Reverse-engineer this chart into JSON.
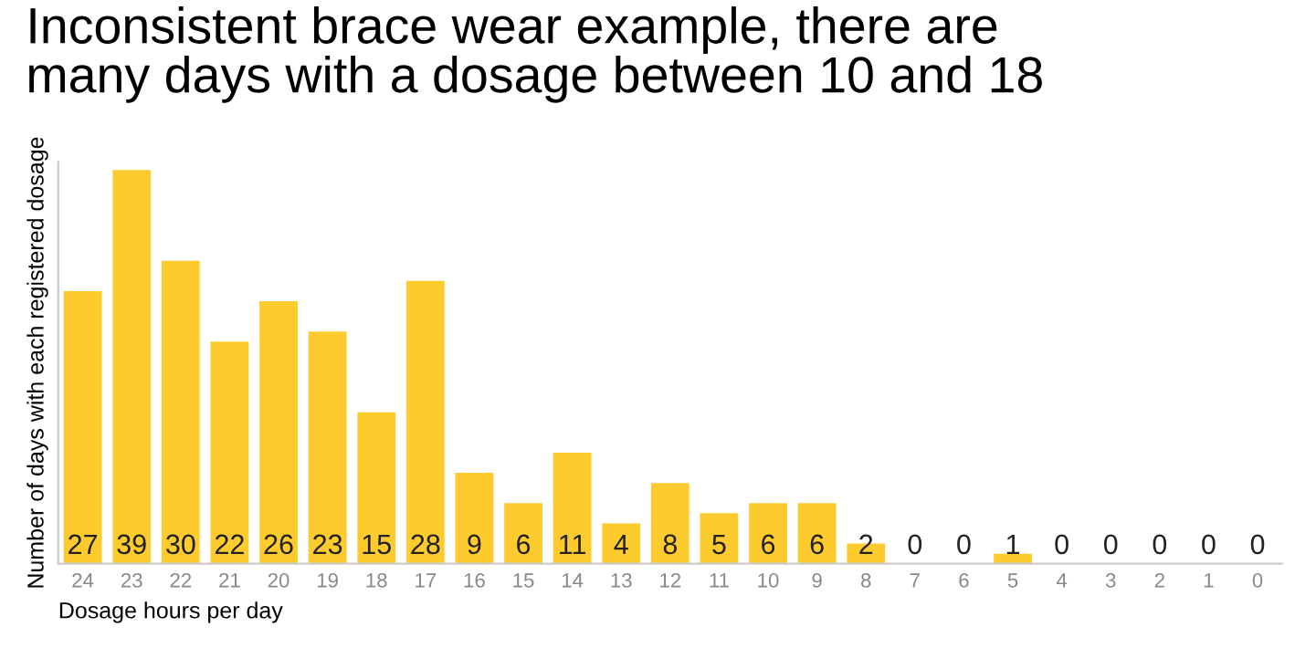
{
  "chart_data": {
    "type": "bar",
    "title": "Inconsistent brace wear example, there are\nmany days with a dosage between 10 and 18",
    "xlabel": "Dosage hours per day",
    "ylabel": "Number of days with each registered dosage",
    "categories": [
      "24",
      "23",
      "22",
      "21",
      "20",
      "19",
      "18",
      "17",
      "16",
      "15",
      "14",
      "13",
      "12",
      "11",
      "10",
      "9",
      "8",
      "7",
      "6",
      "5",
      "4",
      "3",
      "2",
      "1",
      "0"
    ],
    "values": [
      27,
      39,
      30,
      22,
      26,
      23,
      15,
      28,
      9,
      6,
      11,
      4,
      8,
      5,
      6,
      6,
      2,
      0,
      0,
      1,
      0,
      0,
      0,
      0,
      0
    ],
    "color": "#fecb2f",
    "data_labels": true,
    "grid": false,
    "legend": false
  }
}
